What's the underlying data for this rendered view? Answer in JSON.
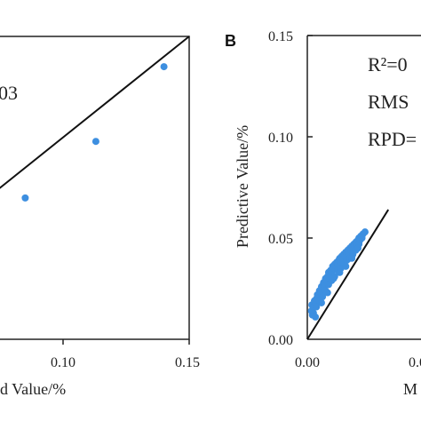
{
  "chart_data": [
    {
      "type": "scatter",
      "panel_label": "",
      "xlabel": "d Value/%",
      "ylabel": "",
      "xlim": [
        0.0,
        0.15
      ],
      "ylim": [
        0.0,
        0.15
      ],
      "x_ticks": [
        "0.10",
        "0.15"
      ],
      "y_ticks": [],
      "annotation_text": "03",
      "fit_line": {
        "x": [
          0.0,
          0.15
        ],
        "y": [
          0.0,
          0.15
        ]
      },
      "point_color": "#3d8fe0",
      "series": [
        {
          "x": [
            0.085,
            0.113,
            0.14
          ],
          "y": [
            0.07,
            0.098,
            0.135
          ]
        }
      ],
      "grid": false
    },
    {
      "type": "scatter",
      "panel_label": "B",
      "xlabel": "M",
      "ylabel": "Predictive Value/%",
      "xlim": [
        0.0,
        0.08
      ],
      "ylim": [
        0.0,
        0.15
      ],
      "x_ticks": [
        "0.00",
        "0.0"
      ],
      "y_ticks": [
        "0.00",
        "0.05",
        "0.10",
        "0.15"
      ],
      "stats": [
        "R²=0",
        "RMS",
        "RPD="
      ],
      "fit_line": {
        "x": [
          0.0,
          0.08
        ],
        "y": [
          0.0,
          0.064
        ]
      },
      "point_color": "#3d8fe0",
      "series": [
        {
          "x": [
            0.004,
            0.0045,
            0.005,
            0.006,
            0.007,
            0.008,
            0.009,
            0.01,
            0.011,
            0.012,
            0.013,
            0.014,
            0.015,
            0.016,
            0.017,
            0.018,
            0.019,
            0.02,
            0.021,
            0.022,
            0.023,
            0.024,
            0.025,
            0.026,
            0.027,
            0.028,
            0.029,
            0.03,
            0.031,
            0.032,
            0.033,
            0.034,
            0.035,
            0.036,
            0.037,
            0.038,
            0.039,
            0.04,
            0.041,
            0.042,
            0.043,
            0.044,
            0.045,
            0.046,
            0.047,
            0.048,
            0.049,
            0.05,
            0.051,
            0.052,
            0.053,
            0.055,
            0.057,
            0.006,
            0.009,
            0.012,
            0.015,
            0.018,
            0.021,
            0.024,
            0.027,
            0.03,
            0.033,
            0.036,
            0.039,
            0.042,
            0.045,
            0.048,
            0.051,
            0.054,
            0.008,
            0.014,
            0.02,
            0.026,
            0.032,
            0.038,
            0.044,
            0.05
          ],
          "y": [
            0.014,
            0.017,
            0.012,
            0.016,
            0.019,
            0.018,
            0.02,
            0.022,
            0.021,
            0.024,
            0.023,
            0.026,
            0.025,
            0.028,
            0.027,
            0.03,
            0.029,
            0.031,
            0.033,
            0.032,
            0.034,
            0.033,
            0.036,
            0.035,
            0.037,
            0.036,
            0.038,
            0.037,
            0.039,
            0.04,
            0.038,
            0.041,
            0.04,
            0.042,
            0.041,
            0.043,
            0.042,
            0.044,
            0.043,
            0.045,
            0.044,
            0.046,
            0.045,
            0.047,
            0.046,
            0.048,
            0.047,
            0.049,
            0.05,
            0.049,
            0.051,
            0.052,
            0.053,
            0.013,
            0.016,
            0.019,
            0.021,
            0.024,
            0.027,
            0.029,
            0.031,
            0.034,
            0.035,
            0.037,
            0.039,
            0.04,
            0.042,
            0.044,
            0.047,
            0.05,
            0.011,
            0.018,
            0.023,
            0.03,
            0.033,
            0.036,
            0.04,
            0.045
          ]
        }
      ],
      "grid": false
    }
  ]
}
